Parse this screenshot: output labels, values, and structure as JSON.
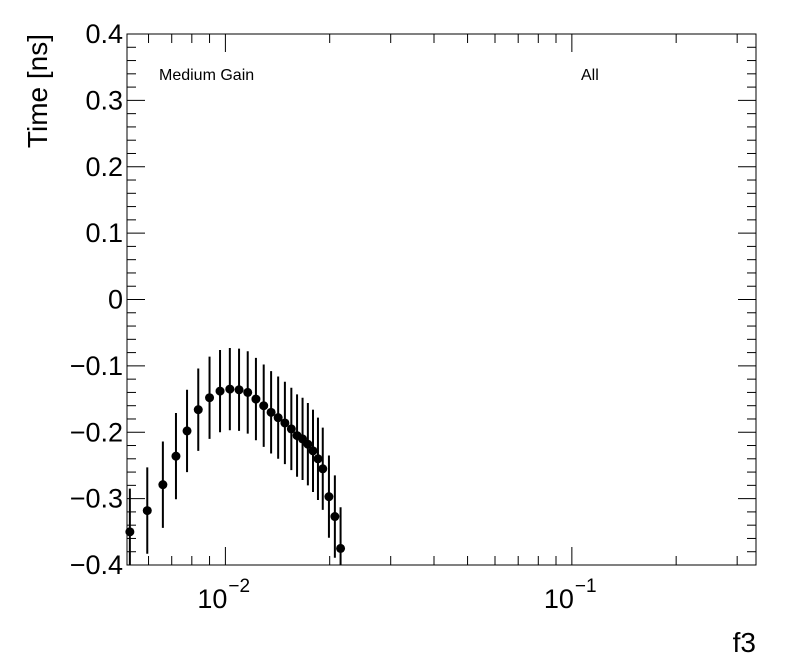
{
  "chart_data": {
    "type": "scatter",
    "xscale": "log",
    "xlim": [
      0.0052,
      0.34
    ],
    "ylim": [
      -0.4,
      0.4
    ],
    "xlabel": "f3",
    "ylabel": "Time [ns]",
    "yticks": [
      {
        "value": 0.4,
        "label": "0.4"
      },
      {
        "value": 0.3,
        "label": "0.3"
      },
      {
        "value": 0.2,
        "label": "0.2"
      },
      {
        "value": 0.1,
        "label": "0.1"
      },
      {
        "value": 0.0,
        "label": "0"
      },
      {
        "value": -0.1,
        "label": "−0.1"
      },
      {
        "value": -0.2,
        "label": "−0.2"
      },
      {
        "value": -0.3,
        "label": "−0.3"
      },
      {
        "value": -0.4,
        "label": "−0.4"
      }
    ],
    "xticks_major": [
      {
        "value": 0.01,
        "base": "10",
        "exp": "−2"
      },
      {
        "value": 0.1,
        "base": "10",
        "exp": "−1"
      }
    ],
    "annotations": {
      "left": "Medium Gain",
      "right": "All"
    },
    "grid": false,
    "marker_color": "#000000",
    "series": [
      {
        "points": [
          {
            "x": 0.0053,
            "y": -0.35,
            "err": 0.065
          },
          {
            "x": 0.00595,
            "y": -0.318,
            "err": 0.065
          },
          {
            "x": 0.0066,
            "y": -0.279,
            "err": 0.065
          },
          {
            "x": 0.0072,
            "y": -0.236,
            "err": 0.065
          },
          {
            "x": 0.00775,
            "y": -0.198,
            "err": 0.062
          },
          {
            "x": 0.00835,
            "y": -0.166,
            "err": 0.062
          },
          {
            "x": 0.009,
            "y": -0.148,
            "err": 0.062
          },
          {
            "x": 0.00965,
            "y": -0.138,
            "err": 0.062
          },
          {
            "x": 0.0103,
            "y": -0.135,
            "err": 0.062
          },
          {
            "x": 0.01095,
            "y": -0.136,
            "err": 0.062
          },
          {
            "x": 0.0116,
            "y": -0.14,
            "err": 0.062
          },
          {
            "x": 0.01225,
            "y": -0.15,
            "err": 0.062
          },
          {
            "x": 0.0129,
            "y": -0.16,
            "err": 0.062
          },
          {
            "x": 0.01355,
            "y": -0.17,
            "err": 0.062
          },
          {
            "x": 0.0142,
            "y": -0.178,
            "err": 0.062
          },
          {
            "x": 0.01485,
            "y": -0.186,
            "err": 0.062
          },
          {
            "x": 0.0155,
            "y": -0.195,
            "err": 0.062
          },
          {
            "x": 0.0161,
            "y": -0.205,
            "err": 0.062
          },
          {
            "x": 0.0167,
            "y": -0.21,
            "err": 0.062
          },
          {
            "x": 0.0173,
            "y": -0.218,
            "err": 0.062
          },
          {
            "x": 0.0179,
            "y": -0.228,
            "err": 0.062
          },
          {
            "x": 0.0185,
            "y": -0.24,
            "err": 0.062
          },
          {
            "x": 0.0191,
            "y": -0.255,
            "err": 0.062
          },
          {
            "x": 0.0199,
            "y": -0.297,
            "err": 0.062
          },
          {
            "x": 0.0207,
            "y": -0.327,
            "err": 0.062
          },
          {
            "x": 0.0215,
            "y": -0.375,
            "err": 0.062
          }
        ]
      }
    ]
  }
}
